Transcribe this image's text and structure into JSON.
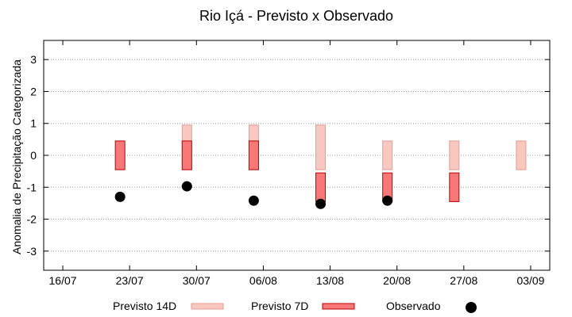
{
  "chart_data": {
    "type": "range-bar",
    "title": "Rio Içá - Previsto x Observado",
    "xlabel": "",
    "ylabel": "Anomalia de Precipitação Categorizada",
    "ylim": [
      -3.6,
      3.6
    ],
    "yticks": [
      3,
      2,
      1,
      0,
      -1,
      -2,
      -3
    ],
    "xticks": [
      "16/07",
      "23/07",
      "30/07",
      "06/08",
      "13/08",
      "20/08",
      "27/08",
      "03/09"
    ],
    "grid": true,
    "legend_position": "bottom",
    "colors": {
      "previsto14d_fill": "#f8c8c0",
      "previsto14d_stroke": "#e89a90",
      "previsto7d_fill": "#f87878",
      "previsto7d_stroke": "#c00000",
      "observado": "#000000"
    },
    "series": [
      {
        "name": "Previsto 14D",
        "kind": "range",
        "points": [
          {
            "x": "30/07",
            "low": -0.45,
            "high": 0.95
          },
          {
            "x": "06/08",
            "low": -0.45,
            "high": 0.95
          },
          {
            "x": "13/08",
            "low": -0.45,
            "high": 0.95
          },
          {
            "x": "20/08",
            "low": -0.45,
            "high": 0.45
          },
          {
            "x": "27/08",
            "low": -0.45,
            "high": 0.45
          },
          {
            "x": "03/09",
            "low": -0.45,
            "high": 0.45
          }
        ]
      },
      {
        "name": "Previsto 7D",
        "kind": "range",
        "points": [
          {
            "x": "23/07",
            "low": -0.45,
            "high": 0.45
          },
          {
            "x": "30/07",
            "low": -0.45,
            "high": 0.45
          },
          {
            "x": "06/08",
            "low": -0.45,
            "high": 0.45
          },
          {
            "x": "13/08",
            "low": -1.45,
            "high": -0.55
          },
          {
            "x": "20/08",
            "low": -1.45,
            "high": -0.55
          },
          {
            "x": "27/08",
            "low": -1.45,
            "high": -0.55
          }
        ]
      },
      {
        "name": "Observado",
        "kind": "point",
        "points": [
          {
            "x": "23/07",
            "y": -1.3
          },
          {
            "x": "30/07",
            "y": -0.97
          },
          {
            "x": "06/08",
            "y": -1.42
          },
          {
            "x": "13/08",
            "y": -1.52
          },
          {
            "x": "20/08",
            "y": -1.42
          }
        ]
      }
    ]
  }
}
